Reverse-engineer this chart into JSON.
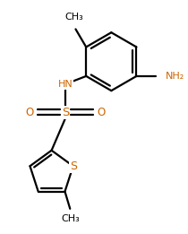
{
  "background_color": "#ffffff",
  "line_color": "#000000",
  "text_color": "#000000",
  "heteroatom_color": "#cc6600",
  "bond_lw": 1.6,
  "figsize": [
    2.1,
    2.61
  ],
  "dpi": 100,
  "xlim": [
    0.0,
    6.5
  ],
  "ylim": [
    0.0,
    8.0
  ]
}
